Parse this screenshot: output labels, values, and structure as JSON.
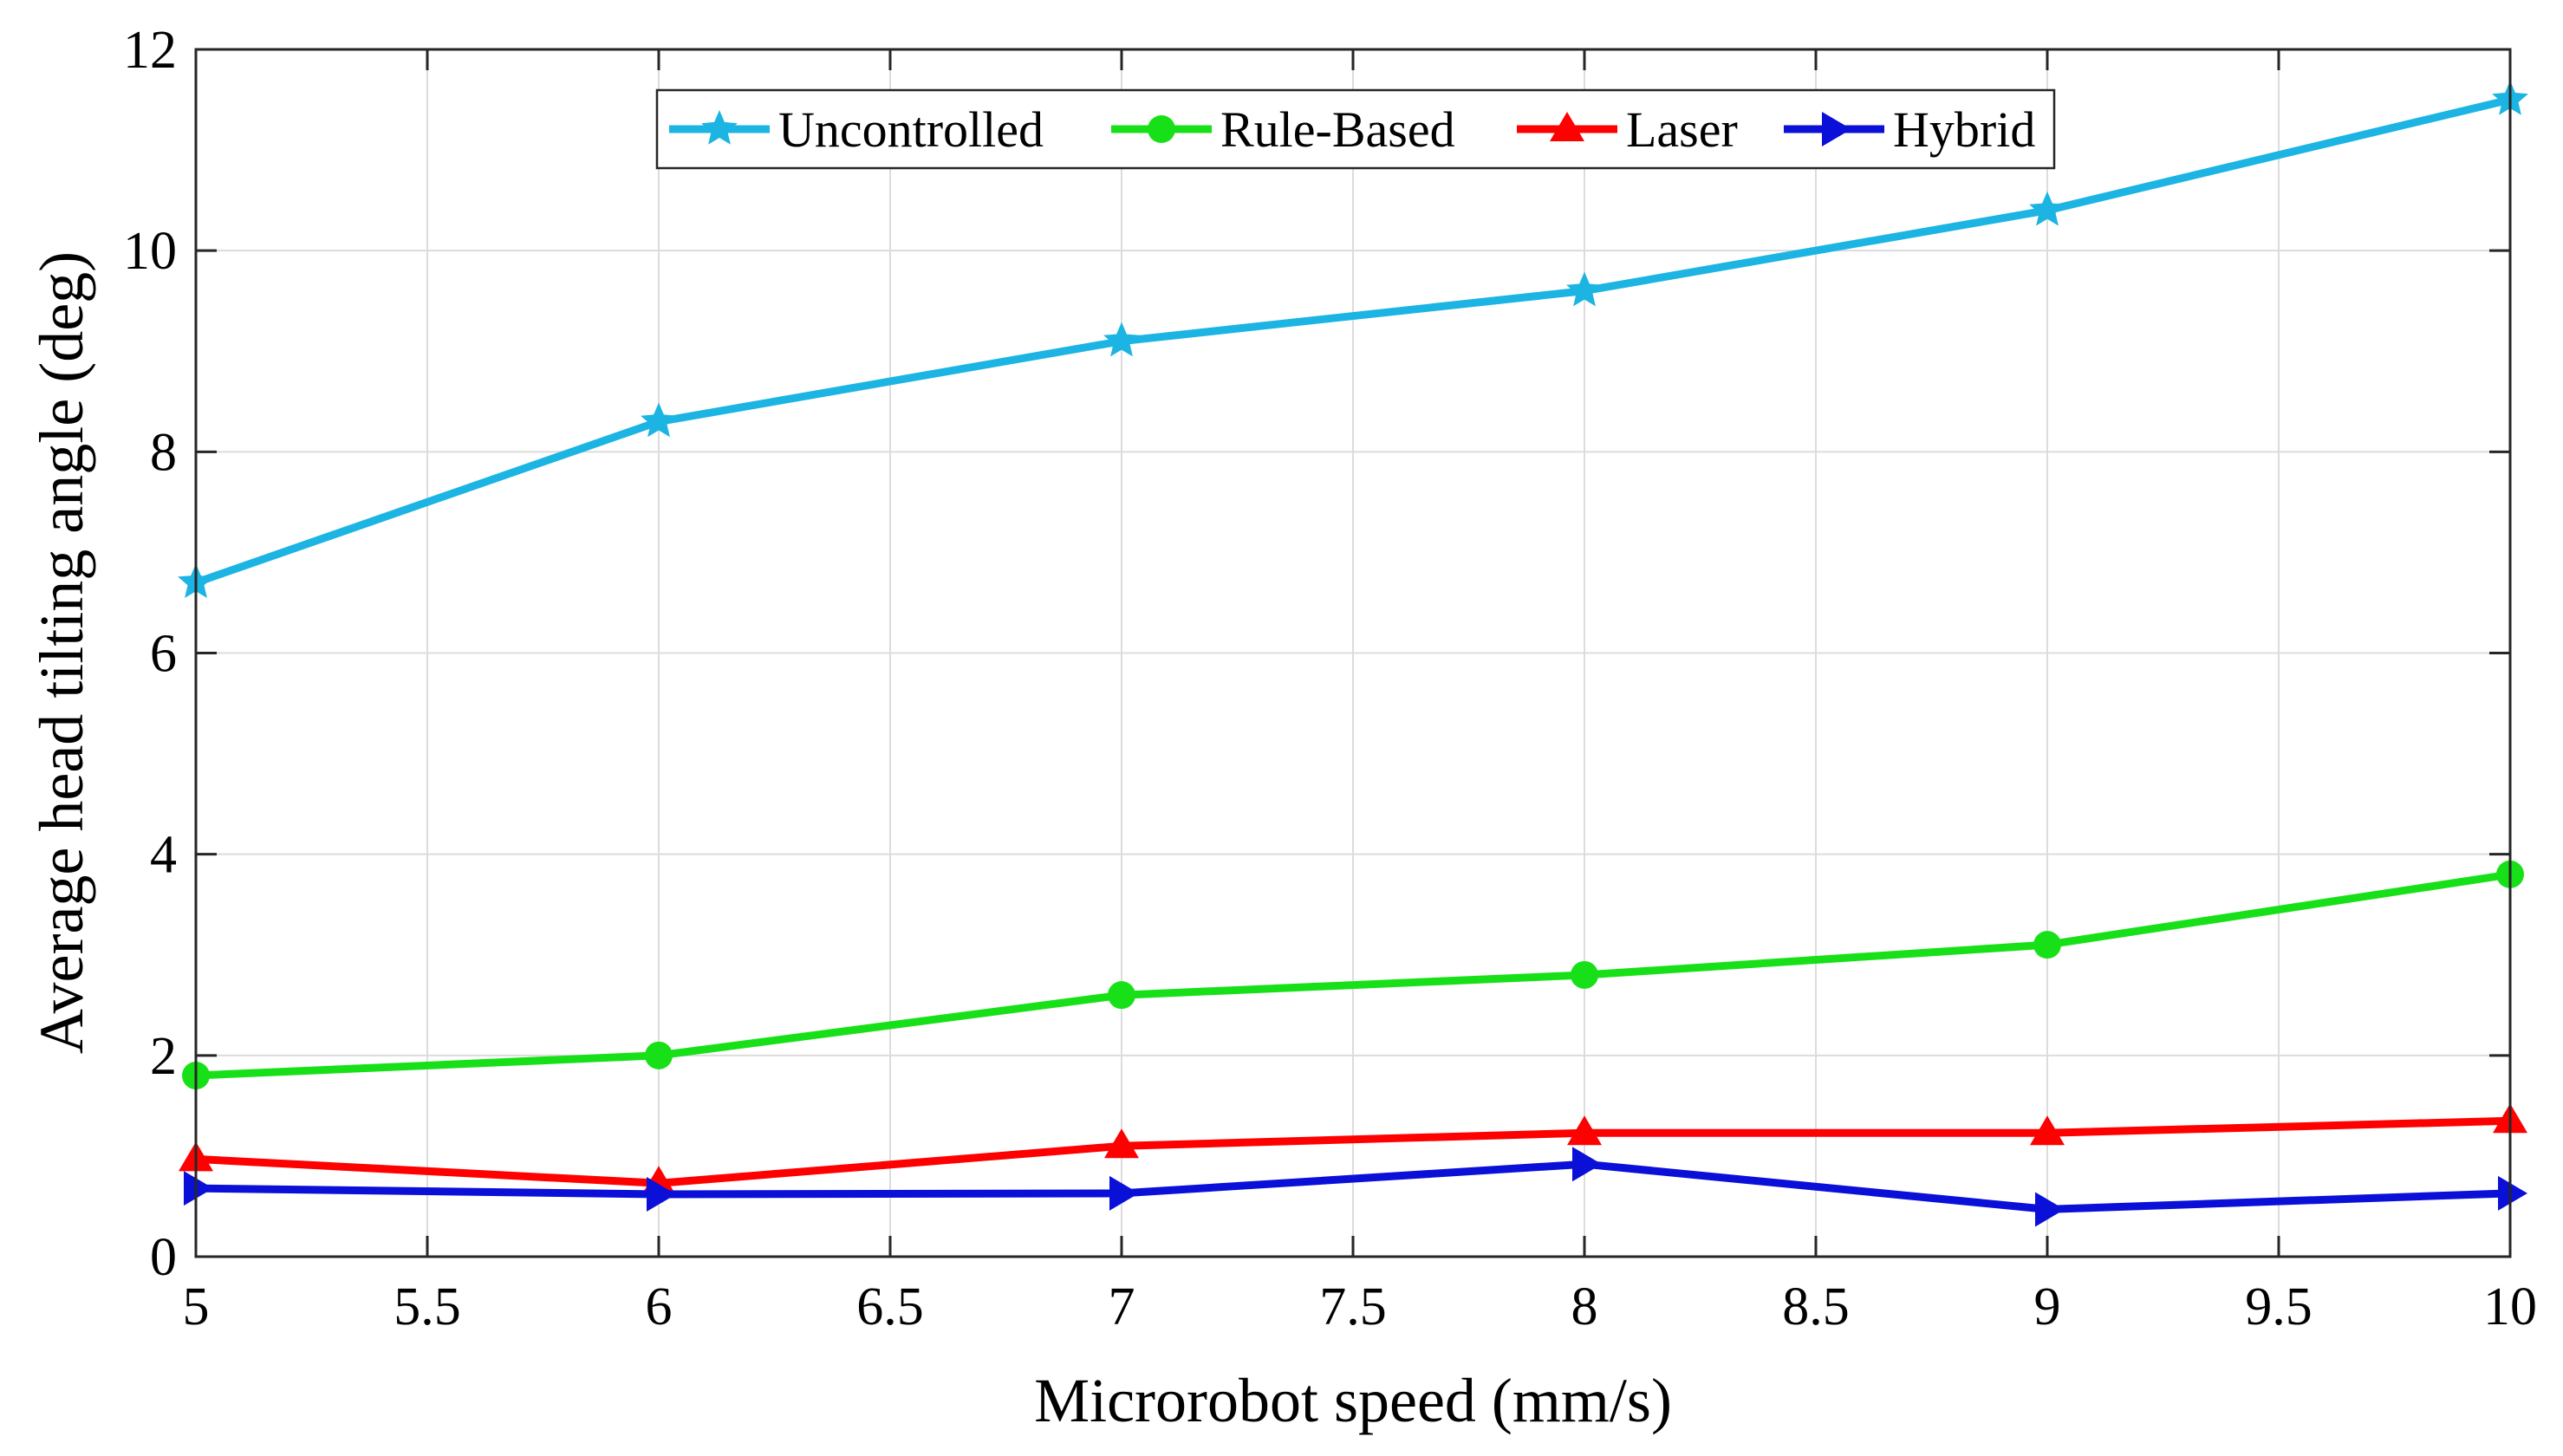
{
  "chart_data": {
    "type": "line",
    "title": "",
    "xlabel": "Microrobot speed (mm/s)",
    "ylabel": "Average head tilting angle (deg)",
    "xlim": [
      5,
      10
    ],
    "ylim": [
      0,
      12
    ],
    "xticks": [
      5,
      5.5,
      6,
      6.5,
      7,
      7.5,
      8,
      8.5,
      9,
      9.5,
      10
    ],
    "xtick_labels": [
      "5",
      "5.5",
      "6",
      "6.5",
      "7",
      "7.5",
      "8",
      "8.5",
      "9",
      "9.5",
      "10"
    ],
    "yticks": [
      0,
      2,
      4,
      6,
      8,
      10,
      12
    ],
    "ytick_labels": [
      "0",
      "2",
      "4",
      "6",
      "8",
      "10",
      "12"
    ],
    "grid": true,
    "legend_position": "top-center",
    "x": [
      5,
      6,
      7,
      8,
      9,
      10
    ],
    "series": [
      {
        "name": "Uncontrolled",
        "color": "#1cb4e3",
        "marker": "star",
        "values": [
          6.7,
          8.3,
          9.1,
          9.6,
          10.4,
          11.5
        ]
      },
      {
        "name": "Rule-Based",
        "color": "#18e018",
        "marker": "circle",
        "values": [
          1.8,
          2.0,
          2.6,
          2.8,
          3.1,
          3.8
        ]
      },
      {
        "name": "Laser",
        "color": "#ff0000",
        "marker": "triangle-up",
        "values": [
          0.97,
          0.73,
          1.1,
          1.23,
          1.23,
          1.35
        ]
      },
      {
        "name": "Hybrid",
        "color": "#0a10d8",
        "marker": "triangle-right",
        "values": [
          0.68,
          0.62,
          0.63,
          0.92,
          0.47,
          0.63
        ]
      }
    ]
  }
}
